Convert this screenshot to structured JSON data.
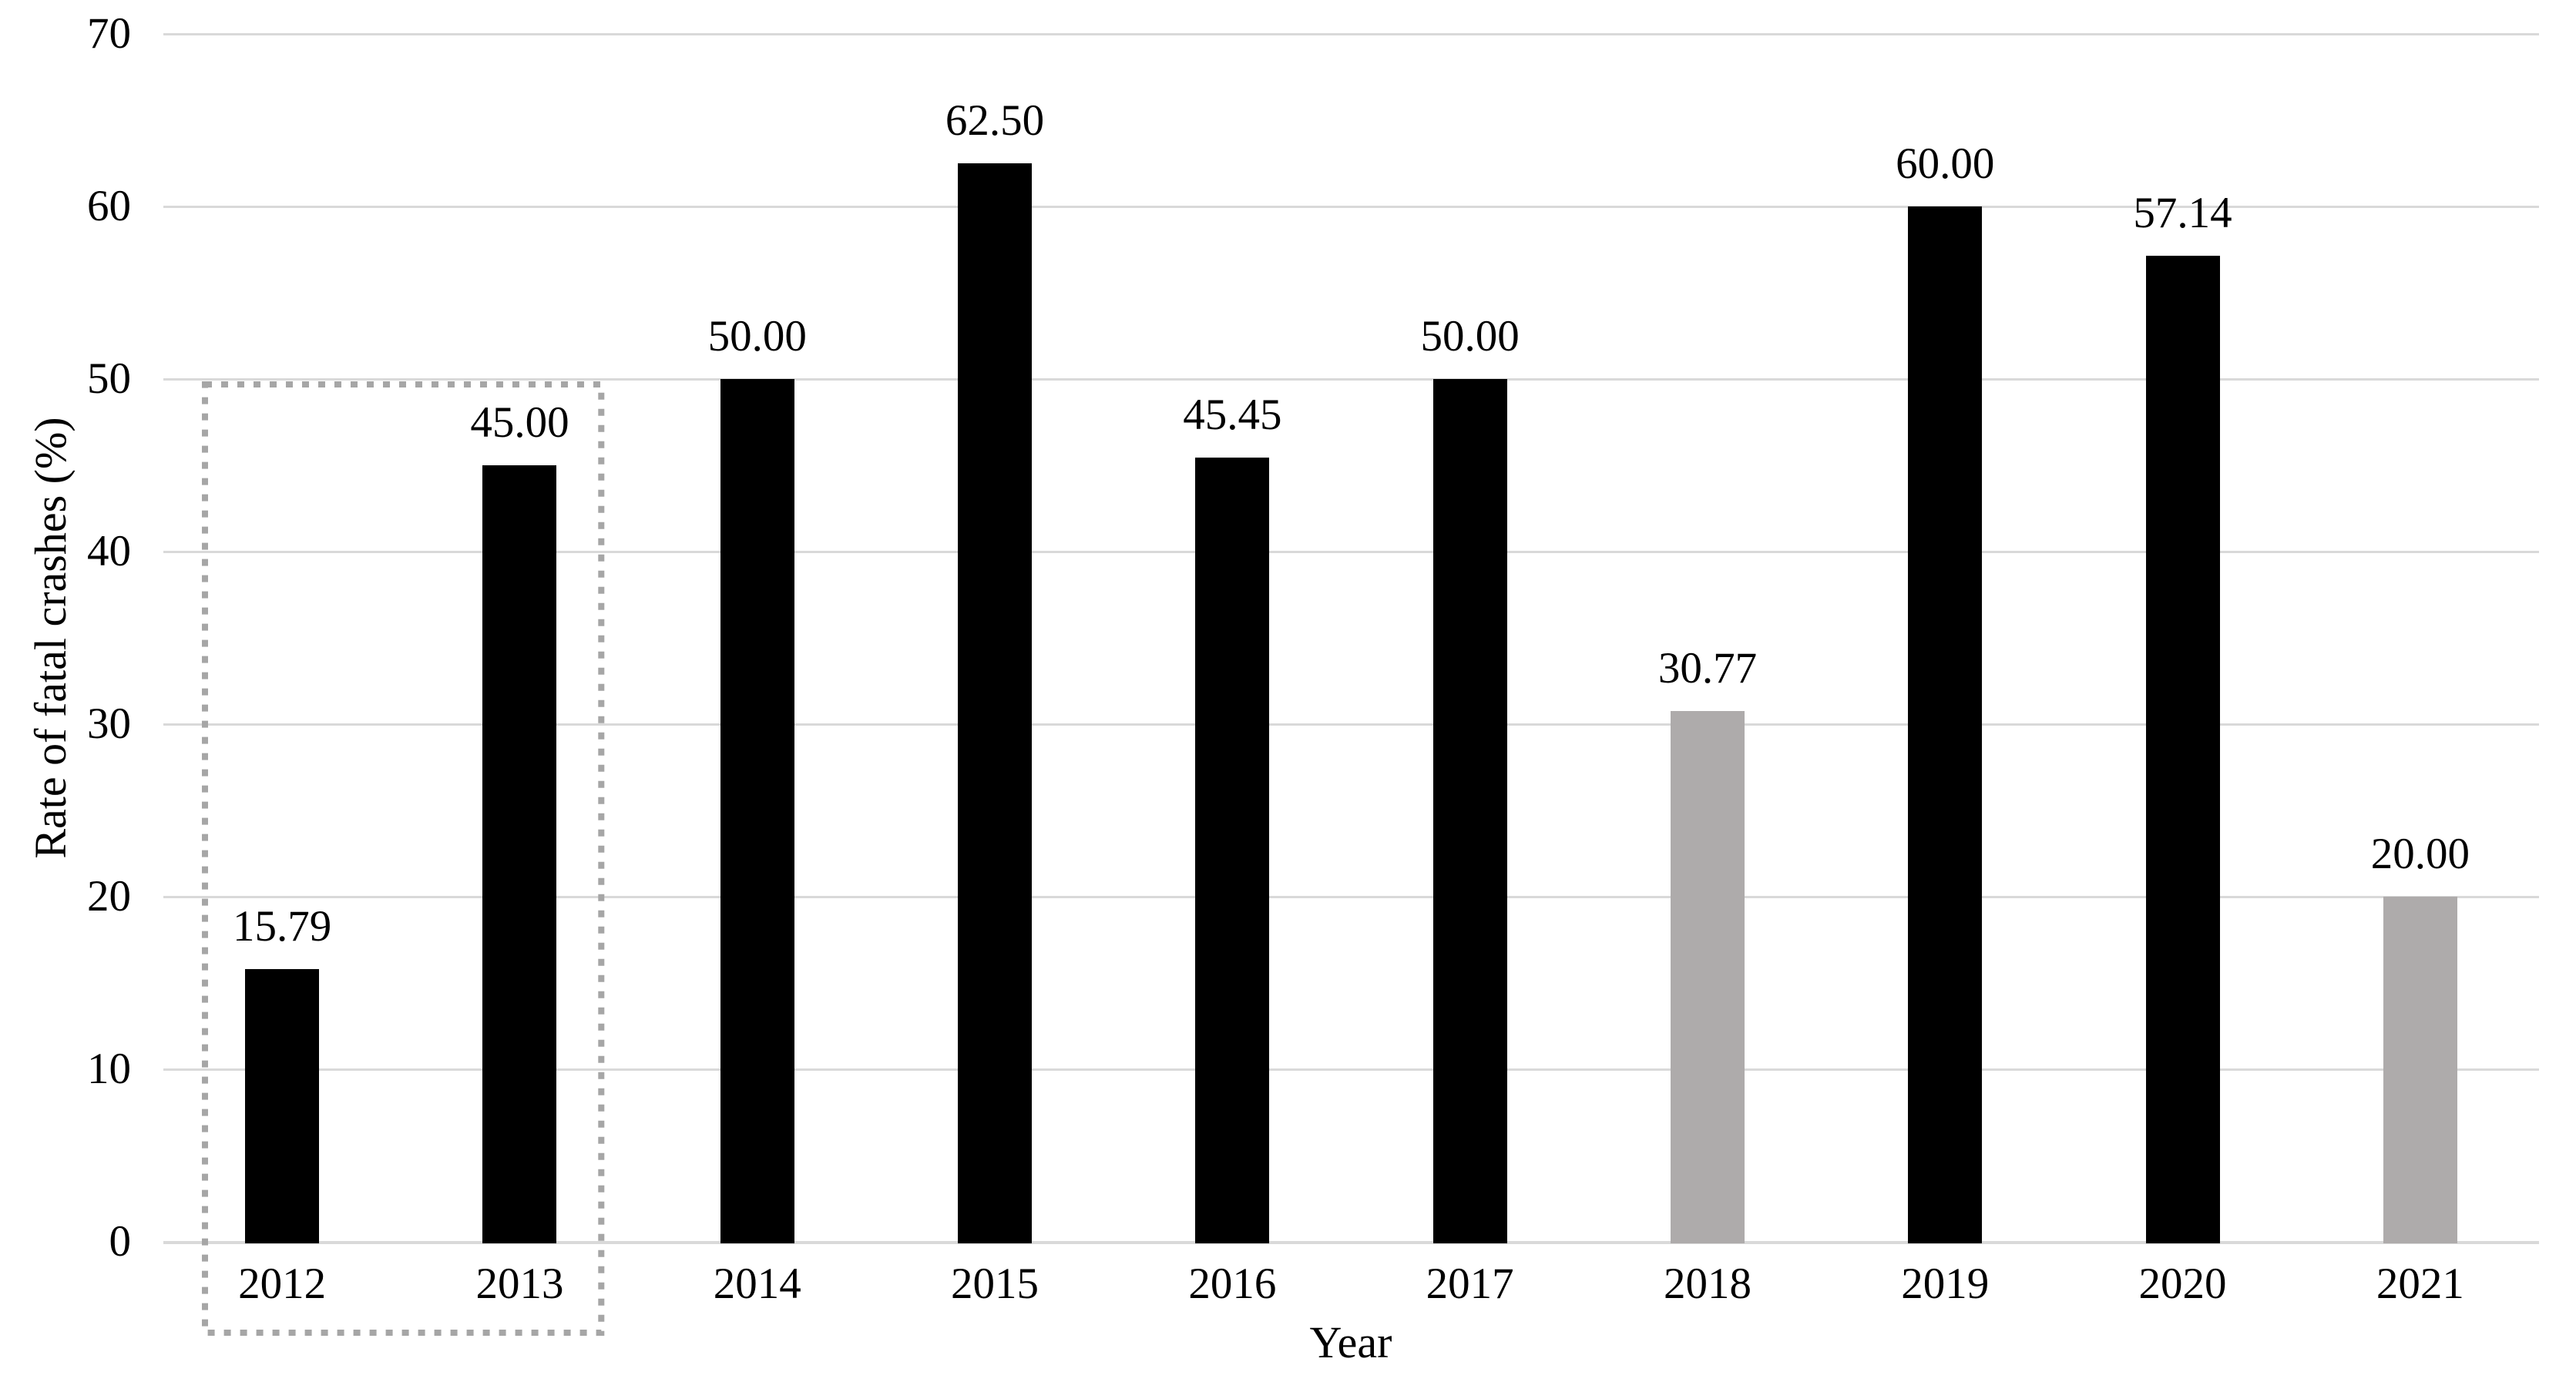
{
  "chart_data": {
    "type": "bar",
    "title": "",
    "xlabel": "Year",
    "ylabel": "Rate of fatal crashes (%)",
    "categories": [
      "2012",
      "2013",
      "2014",
      "2015",
      "2016",
      "2017",
      "2018",
      "2019",
      "2020",
      "2021"
    ],
    "values": [
      15.79,
      45.0,
      50.0,
      62.5,
      45.45,
      50.0,
      30.77,
      60.0,
      57.14,
      20.0
    ],
    "value_labels": [
      "15.79",
      "45.00",
      "50.00",
      "62.50",
      "45.45",
      "50.00",
      "30.77",
      "60.00",
      "57.14",
      "20.00"
    ],
    "bar_color_roles": [
      "black",
      "black",
      "black",
      "black",
      "black",
      "black",
      "gray",
      "black",
      "black",
      "gray"
    ],
    "ylim": [
      0,
      70
    ],
    "yticks": [
      0,
      10,
      20,
      30,
      40,
      50,
      60,
      70
    ],
    "grid": "horizontal-gridlines-on",
    "legend": "none",
    "annotation_box": {
      "from_category": "2012",
      "to_category": "2013",
      "style": "gray-dotted-outline"
    }
  },
  "colors": {
    "bar_black": "#000000",
    "bar_gray": "#aeabab",
    "gridline": "#d9d9d9",
    "annotation_outline": "#a6a6a6",
    "text": "#000000",
    "background": "#ffffff"
  }
}
